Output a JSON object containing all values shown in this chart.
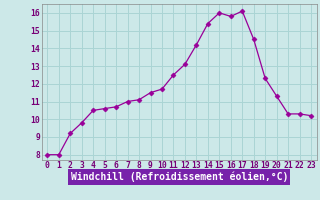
{
  "x": [
    0,
    1,
    2,
    3,
    4,
    5,
    6,
    7,
    8,
    9,
    10,
    11,
    12,
    13,
    14,
    15,
    16,
    17,
    18,
    19,
    20,
    21,
    22,
    23
  ],
  "y": [
    8.0,
    8.0,
    9.2,
    9.8,
    10.5,
    10.6,
    10.7,
    11.0,
    11.1,
    11.5,
    11.7,
    12.5,
    13.1,
    14.2,
    15.4,
    16.0,
    15.8,
    16.1,
    14.5,
    12.3,
    11.3,
    10.3,
    10.3,
    10.2
  ],
  "line_color": "#990099",
  "marker": "D",
  "marker_size": 2.5,
  "bg_color": "#cce8e8",
  "grid_color": "#aad4d4",
  "xlabel": "Windchill (Refroidissement éolien,°C)",
  "xlabel_color": "#ffffff",
  "xlabel_bg": "#7722aa",
  "ylim": [
    7.7,
    16.5
  ],
  "xlim": [
    -0.5,
    23.5
  ],
  "yticks": [
    8,
    9,
    10,
    11,
    12,
    13,
    14,
    15,
    16
  ],
  "xticks": [
    0,
    1,
    2,
    3,
    4,
    5,
    6,
    7,
    8,
    9,
    10,
    11,
    12,
    13,
    14,
    15,
    16,
    17,
    18,
    19,
    20,
    21,
    22,
    23
  ],
  "tick_fontsize": 5.8,
  "xlabel_fontsize": 7.0,
  "tick_color": "#770077"
}
